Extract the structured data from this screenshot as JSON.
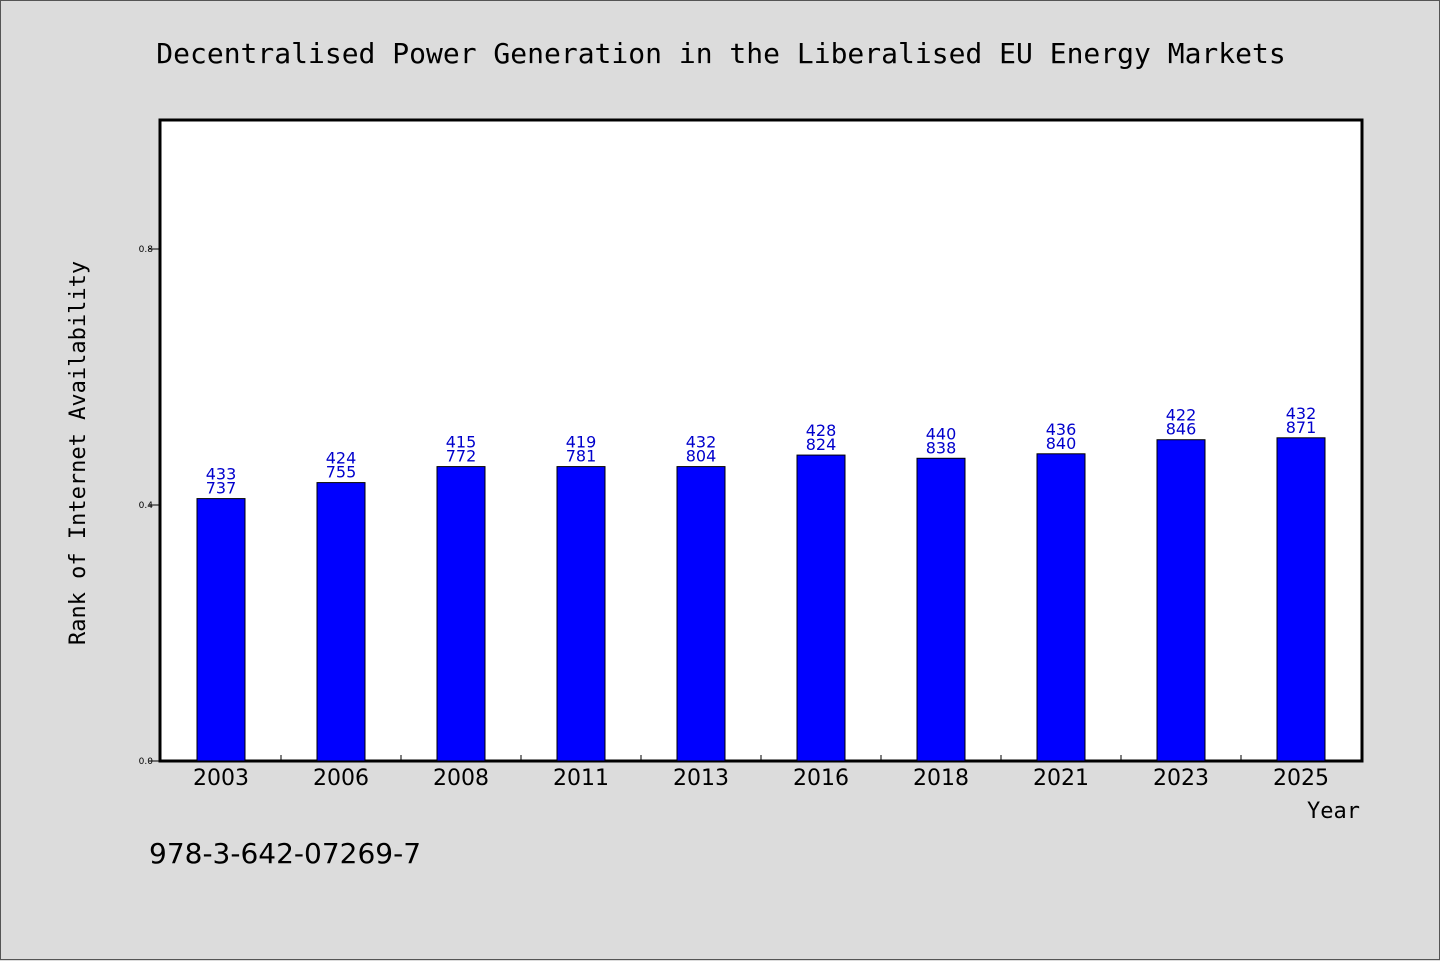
{
  "chart_data": {
    "type": "bar",
    "title": "Decentralised Power Generation in the Liberalised EU Energy Markets",
    "xlabel": "Year",
    "ylabel": "Rank of Internet Availability",
    "categories": [
      "2003",
      "2006",
      "2008",
      "2011",
      "2013",
      "2016",
      "2018",
      "2021",
      "2023",
      "2025"
    ],
    "values": [
      0.41,
      0.435,
      0.46,
      0.46,
      0.46,
      0.478,
      0.473,
      0.48,
      0.502,
      0.505
    ],
    "data_labels": [
      [
        "433",
        "737"
      ],
      [
        "424",
        "755"
      ],
      [
        "415",
        "772"
      ],
      [
        "419",
        "781"
      ],
      [
        "432",
        "804"
      ],
      [
        "428",
        "824"
      ],
      [
        "440",
        "838"
      ],
      [
        "436",
        "840"
      ],
      [
        "422",
        "846"
      ],
      [
        "432",
        "871"
      ]
    ],
    "yticks": [
      "0.0",
      "0.4",
      "0.8"
    ],
    "ytick_values": [
      0.0,
      0.4,
      0.8
    ],
    "ylim": [
      0,
      1.0
    ],
    "bar_color": "#0000ff",
    "label_color": "#0000cc",
    "grid": false,
    "legend": "none"
  },
  "footer": {
    "isbn": "978-3-642-07269-7"
  }
}
